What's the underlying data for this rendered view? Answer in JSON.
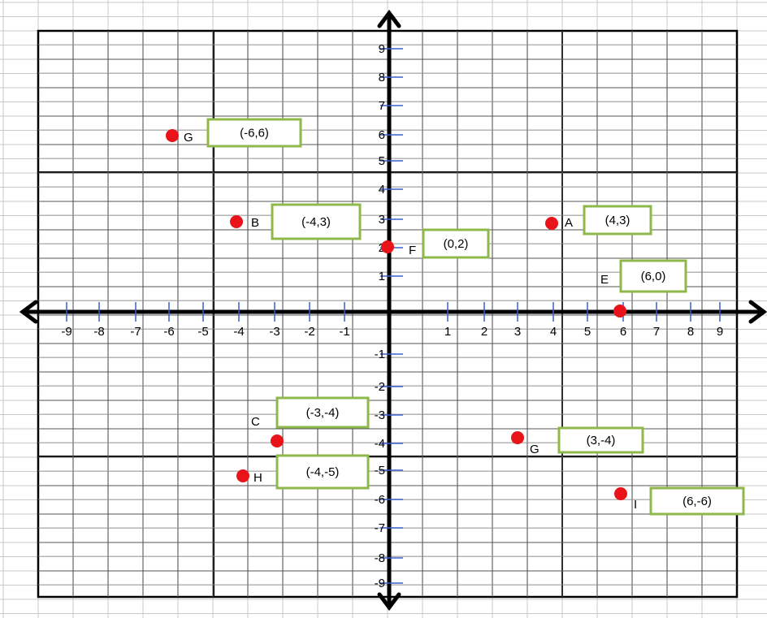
{
  "chart_data": {
    "type": "scatter",
    "title": "",
    "xlabel": "",
    "ylabel": "",
    "xlim": [
      -9,
      9
    ],
    "ylim": [
      -9,
      9
    ],
    "grid": true,
    "x_ticks": [
      "-9",
      "-8",
      "-7",
      "-6",
      "-5",
      "-4",
      "-3",
      "-2",
      "-1",
      "1",
      "2",
      "3",
      "4",
      "5",
      "6",
      "7",
      "8",
      "9"
    ],
    "y_ticks": [
      "9",
      "8",
      "7",
      "6",
      "5",
      "4",
      "3",
      "2",
      "1",
      "-1",
      "-2",
      "-3",
      "-4",
      "-5",
      "-6",
      "-7",
      "-8",
      "-9"
    ],
    "points": [
      {
        "label": "G",
        "x": -6,
        "y": 6,
        "coord": "(-6,6)",
        "color": "#e8141a"
      },
      {
        "label": "B",
        "x": -4,
        "y": 3,
        "coord": "(-4,3)",
        "color": "#e8141a"
      },
      {
        "label": "F",
        "x": 0,
        "y": 2,
        "coord": "(0,2)",
        "color": "#e8141a"
      },
      {
        "label": "A",
        "x": 4,
        "y": 3,
        "coord": "(4,3)",
        "color": "#e8141a"
      },
      {
        "label": "E",
        "x": 6,
        "y": 0,
        "coord": "(6,0)",
        "color": "#e8141a"
      },
      {
        "label": "C",
        "x": -3,
        "y": -4,
        "coord": "(-3,-4)",
        "color": "#e8141a"
      },
      {
        "label": "H",
        "x": -4,
        "y": -5,
        "coord": "(-4,-5)",
        "color": "#e8141a"
      },
      {
        "label": "G",
        "x": 3,
        "y": -4,
        "coord": "(3,-4)",
        "color": "#e8141a"
      },
      {
        "label": "I",
        "x": 6,
        "y": -6,
        "coord": "(6,-6)",
        "color": "#e8141a"
      }
    ],
    "colors": {
      "point": "#e8141a",
      "box_border": "#8fb84a",
      "grid_minor": "#c8c8c8",
      "grid_major": "#000000",
      "axis": "#000000",
      "tick_mark": "#3a5fcd"
    }
  }
}
